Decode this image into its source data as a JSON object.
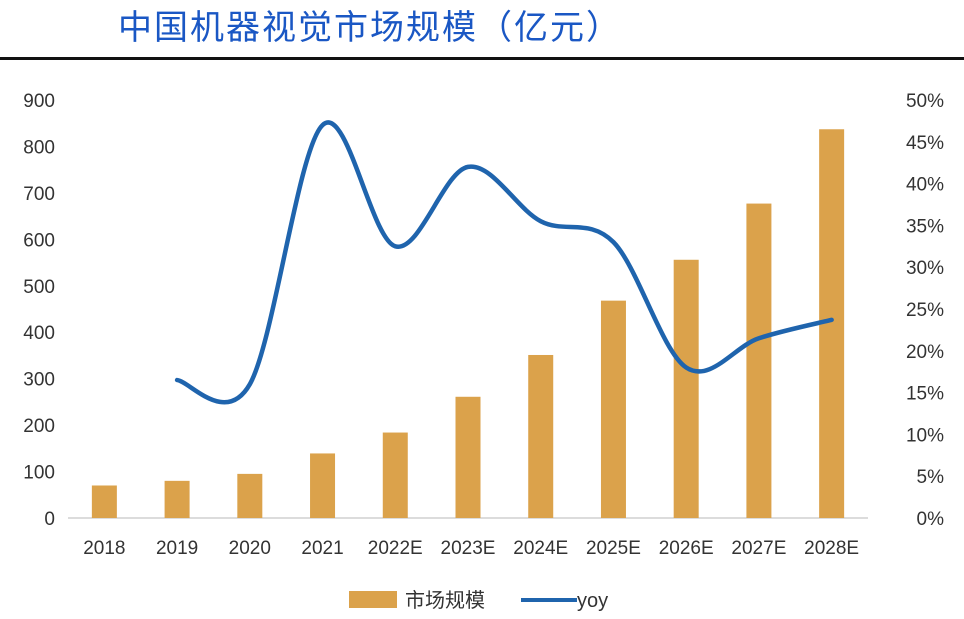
{
  "chart_data": {
    "type": "bar",
    "title": "中国机器视觉市场规模（亿元）",
    "categories": [
      "2018",
      "2019",
      "2020",
      "2021",
      "2022E",
      "2023E",
      "2024E",
      "2025E",
      "2026E",
      "2027E",
      "2028E"
    ],
    "series": [
      {
        "name": "市场规模",
        "type": "bar",
        "axis": "left",
        "color": "#dba24b",
        "values": [
          70,
          80,
          95,
          139,
          184,
          261,
          351,
          468,
          556,
          677,
          837
        ]
      },
      {
        "name": "yoy",
        "type": "line",
        "axis": "right",
        "color": "#1f64ad",
        "values": [
          null,
          0.165,
          0.16,
          0.47,
          0.325,
          0.42,
          0.355,
          0.33,
          0.18,
          0.215,
          0.237
        ]
      }
    ],
    "yleft": {
      "lim": [
        0,
        900
      ],
      "ticks": [
        "0",
        "100",
        "200",
        "300",
        "400",
        "500",
        "600",
        "700",
        "800",
        "900"
      ]
    },
    "yright": {
      "lim": [
        0,
        0.5
      ],
      "ticks": [
        "0%",
        "5%",
        "10%",
        "15%",
        "20%",
        "25%",
        "30%",
        "35%",
        "40%",
        "45%",
        "50%"
      ]
    },
    "grid": false,
    "legend": {
      "position": "bottom",
      "entries": [
        "市场规模",
        "yoy"
      ]
    }
  }
}
